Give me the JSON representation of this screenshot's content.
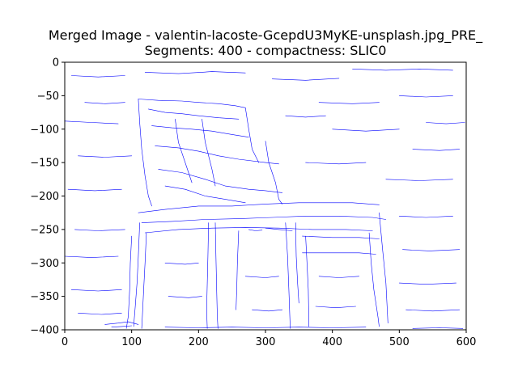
{
  "chart_data": {
    "type": "line",
    "title_line1": "Merged Image - valentin-lacoste-GcepdU3MyKE-unsplash.jpg_PRE_",
    "title_line2": "Segments: 400 - compactness: SLIC0",
    "xlim": [
      0,
      600
    ],
    "ylim": [
      -400,
      0
    ],
    "xticks": [
      0,
      100,
      200,
      300,
      400,
      500,
      600
    ],
    "yticks": [
      0,
      -50,
      -100,
      -150,
      -200,
      -250,
      -300,
      -350,
      -400
    ],
    "xtick_labels": [
      "0",
      "100",
      "200",
      "300",
      "400",
      "500",
      "600"
    ],
    "ytick_labels": [
      "0",
      "−50",
      "−100",
      "−150",
      "−200",
      "−250",
      "−300",
      "−350",
      "−400"
    ],
    "grid": false,
    "line_color": "#0000ff",
    "series": [
      {
        "values": [
          [
            110,
            -55
          ],
          [
            140,
            -57
          ],
          [
            175,
            -58
          ],
          [
            200,
            -60
          ],
          [
            230,
            -62
          ],
          [
            255,
            -65
          ],
          [
            270,
            -68
          ]
        ]
      },
      {
        "values": [
          [
            110,
            -55
          ],
          [
            112,
            -90
          ],
          [
            115,
            -130
          ],
          [
            120,
            -170
          ],
          [
            125,
            -200
          ],
          [
            130,
            -215
          ]
        ]
      },
      {
        "values": [
          [
            125,
            -70
          ],
          [
            150,
            -75
          ],
          [
            175,
            -77
          ],
          [
            200,
            -80
          ],
          [
            230,
            -83
          ],
          [
            260,
            -85
          ]
        ]
      },
      {
        "values": [
          [
            130,
            -95
          ],
          [
            160,
            -98
          ],
          [
            190,
            -100
          ],
          [
            220,
            -103
          ],
          [
            250,
            -108
          ],
          [
            275,
            -112
          ]
        ]
      },
      {
        "values": [
          [
            135,
            -125
          ],
          [
            170,
            -128
          ],
          [
            200,
            -133
          ],
          [
            230,
            -140
          ],
          [
            260,
            -145
          ],
          [
            300,
            -150
          ],
          [
            320,
            -152
          ]
        ]
      },
      {
        "values": [
          [
            140,
            -160
          ],
          [
            175,
            -165
          ],
          [
            210,
            -175
          ],
          [
            240,
            -185
          ],
          [
            275,
            -190
          ],
          [
            300,
            -192
          ],
          [
            325,
            -195
          ]
        ]
      },
      {
        "values": [
          [
            150,
            -185
          ],
          [
            180,
            -190
          ],
          [
            210,
            -200
          ],
          [
            240,
            -205
          ],
          [
            270,
            -210
          ]
        ]
      },
      {
        "values": [
          [
            270,
            -68
          ],
          [
            275,
            -100
          ],
          [
            280,
            -130
          ],
          [
            290,
            -150
          ]
        ]
      },
      {
        "values": [
          [
            300,
            -118
          ],
          [
            305,
            -150
          ],
          [
            315,
            -180
          ],
          [
            320,
            -205
          ],
          [
            325,
            -212
          ]
        ]
      },
      {
        "values": [
          [
            205,
            -85
          ],
          [
            210,
            -120
          ],
          [
            220,
            -160
          ],
          [
            225,
            -185
          ]
        ]
      },
      {
        "values": [
          [
            165,
            -85
          ],
          [
            170,
            -120
          ],
          [
            180,
            -150
          ],
          [
            190,
            -180
          ]
        ]
      },
      {
        "values": [
          [
            110,
            -225
          ],
          [
            150,
            -220
          ],
          [
            200,
            -215
          ],
          [
            250,
            -215
          ],
          [
            300,
            -212
          ],
          [
            350,
            -210
          ],
          [
            400,
            -210
          ],
          [
            430,
            -210
          ],
          [
            470,
            -213
          ]
        ]
      },
      {
        "values": [
          [
            115,
            -240
          ],
          [
            160,
            -238
          ],
          [
            210,
            -235
          ],
          [
            260,
            -234
          ],
          [
            310,
            -232
          ],
          [
            360,
            -230
          ],
          [
            410,
            -230
          ],
          [
            460,
            -232
          ],
          [
            480,
            -235
          ]
        ]
      },
      {
        "values": [
          [
            120,
            -255
          ],
          [
            170,
            -250
          ],
          [
            220,
            -248
          ],
          [
            270,
            -247
          ],
          [
            320,
            -248
          ],
          [
            370,
            -250
          ],
          [
            420,
            -250
          ],
          [
            460,
            -252
          ]
        ]
      },
      {
        "values": [
          [
            100,
            -260
          ],
          [
            98,
            -300
          ],
          [
            97,
            -340
          ],
          [
            95,
            -380
          ],
          [
            92,
            -398
          ]
        ]
      },
      {
        "values": [
          [
            112,
            -240
          ],
          [
            110,
            -290
          ],
          [
            108,
            -330
          ],
          [
            105,
            -370
          ],
          [
            103,
            -395
          ]
        ]
      },
      {
        "values": [
          [
            122,
            -255
          ],
          [
            120,
            -300
          ],
          [
            118,
            -340
          ],
          [
            116,
            -380
          ],
          [
            115,
            -398
          ]
        ]
      },
      {
        "values": [
          [
            215,
            -240
          ],
          [
            214,
            -290
          ],
          [
            213,
            -330
          ],
          [
            212,
            -370
          ],
          [
            213,
            -398
          ]
        ]
      },
      {
        "values": [
          [
            225,
            -240
          ],
          [
            226,
            -290
          ],
          [
            227,
            -340
          ],
          [
            228,
            -380
          ],
          [
            229,
            -398
          ]
        ]
      },
      {
        "values": [
          [
            260,
            -252
          ],
          [
            258,
            -300
          ],
          [
            257,
            -340
          ],
          [
            256,
            -370
          ]
        ]
      },
      {
        "values": [
          [
            330,
            -240
          ],
          [
            333,
            -290
          ],
          [
            335,
            -340
          ],
          [
            337,
            -398
          ]
        ]
      },
      {
        "values": [
          [
            345,
            -240
          ],
          [
            346,
            -290
          ],
          [
            348,
            -330
          ],
          [
            350,
            -360
          ]
        ]
      },
      {
        "values": [
          [
            355,
            -260
          ],
          [
            400,
            -262
          ],
          [
            440,
            -262
          ],
          [
            470,
            -264
          ]
        ]
      },
      {
        "values": [
          [
            355,
            -285
          ],
          [
            400,
            -285
          ],
          [
            440,
            -285
          ],
          [
            465,
            -287
          ]
        ]
      },
      {
        "values": [
          [
            360,
            -260
          ],
          [
            362,
            -300
          ],
          [
            364,
            -340
          ],
          [
            365,
            -395
          ]
        ]
      },
      {
        "values": [
          [
            455,
            -255
          ],
          [
            458,
            -300
          ],
          [
            462,
            -340
          ],
          [
            468,
            -380
          ],
          [
            470,
            -395
          ]
        ]
      },
      {
        "values": [
          [
            470,
            -225
          ],
          [
            475,
            -280
          ],
          [
            480,
            -330
          ],
          [
            483,
            -390
          ]
        ]
      },
      {
        "values": [
          [
            300,
            -248
          ],
          [
            320,
            -250
          ],
          [
            340,
            -252
          ]
        ]
      },
      {
        "values": [
          [
            275,
            -250
          ],
          [
            285,
            -252
          ],
          [
            295,
            -251
          ]
        ]
      },
      {
        "values": [
          [
            60,
            -392
          ],
          [
            80,
            -390
          ],
          [
            95,
            -388
          ],
          [
            110,
            -392
          ]
        ]
      },
      {
        "values": [
          [
            70,
            -396
          ],
          [
            85,
            -395
          ],
          [
            100,
            -394
          ]
        ]
      },
      {
        "values": [
          [
            0,
            -88
          ],
          [
            40,
            -90
          ],
          [
            80,
            -92
          ]
        ]
      },
      {
        "values": [
          [
            10,
            -20
          ],
          [
            50,
            -22
          ],
          [
            90,
            -20
          ]
        ]
      },
      {
        "values": [
          [
            120,
            -15
          ],
          [
            170,
            -17
          ],
          [
            220,
            -14
          ],
          [
            270,
            -16
          ]
        ]
      },
      {
        "values": [
          [
            310,
            -25
          ],
          [
            360,
            -27
          ],
          [
            410,
            -24
          ]
        ]
      },
      {
        "values": [
          [
            430,
            -10
          ],
          [
            480,
            -12
          ],
          [
            530,
            -10
          ],
          [
            580,
            -12
          ]
        ]
      },
      {
        "values": [
          [
            380,
            -60
          ],
          [
            430,
            -62
          ],
          [
            470,
            -60
          ]
        ]
      },
      {
        "values": [
          [
            500,
            -50
          ],
          [
            540,
            -52
          ],
          [
            580,
            -50
          ]
        ]
      },
      {
        "values": [
          [
            400,
            -100
          ],
          [
            450,
            -103
          ],
          [
            500,
            -100
          ]
        ]
      },
      {
        "values": [
          [
            520,
            -130
          ],
          [
            560,
            -132
          ],
          [
            590,
            -130
          ]
        ]
      },
      {
        "values": [
          [
            360,
            -150
          ],
          [
            410,
            -152
          ],
          [
            450,
            -150
          ]
        ]
      },
      {
        "values": [
          [
            480,
            -175
          ],
          [
            530,
            -177
          ],
          [
            580,
            -175
          ]
        ]
      },
      {
        "values": [
          [
            20,
            -140
          ],
          [
            60,
            -142
          ],
          [
            100,
            -140
          ]
        ]
      },
      {
        "values": [
          [
            5,
            -190
          ],
          [
            45,
            -192
          ],
          [
            85,
            -190
          ]
        ]
      },
      {
        "values": [
          [
            15,
            -250
          ],
          [
            50,
            -252
          ],
          [
            90,
            -250
          ]
        ]
      },
      {
        "values": [
          [
            0,
            -290
          ],
          [
            40,
            -292
          ],
          [
            80,
            -290
          ]
        ]
      },
      {
        "values": [
          [
            10,
            -340
          ],
          [
            50,
            -342
          ],
          [
            85,
            -340
          ]
        ]
      },
      {
        "values": [
          [
            20,
            -375
          ],
          [
            55,
            -377
          ],
          [
            85,
            -375
          ]
        ]
      },
      {
        "values": [
          [
            500,
            -230
          ],
          [
            540,
            -232
          ],
          [
            580,
            -230
          ]
        ]
      },
      {
        "values": [
          [
            505,
            -280
          ],
          [
            545,
            -282
          ],
          [
            590,
            -280
          ]
        ]
      },
      {
        "values": [
          [
            500,
            -330
          ],
          [
            540,
            -332
          ],
          [
            585,
            -330
          ]
        ]
      },
      {
        "values": [
          [
            510,
            -370
          ],
          [
            550,
            -372
          ],
          [
            590,
            -370
          ]
        ]
      },
      {
        "values": [
          [
            150,
            -300
          ],
          [
            180,
            -302
          ],
          [
            200,
            -300
          ]
        ]
      },
      {
        "values": [
          [
            155,
            -350
          ],
          [
            185,
            -352
          ],
          [
            205,
            -350
          ]
        ]
      },
      {
        "values": [
          [
            270,
            -320
          ],
          [
            300,
            -322
          ],
          [
            320,
            -320
          ]
        ]
      },
      {
        "values": [
          [
            280,
            -370
          ],
          [
            305,
            -372
          ],
          [
            325,
            -370
          ]
        ]
      },
      {
        "values": [
          [
            380,
            -320
          ],
          [
            410,
            -322
          ],
          [
            440,
            -320
          ]
        ]
      },
      {
        "values": [
          [
            375,
            -365
          ],
          [
            405,
            -367
          ],
          [
            435,
            -365
          ]
        ]
      },
      {
        "values": [
          [
            150,
            -396
          ],
          [
            200,
            -397
          ],
          [
            250,
            -396
          ],
          [
            300,
            -397
          ],
          [
            350,
            -396
          ],
          [
            400,
            -397
          ],
          [
            450,
            -396
          ]
        ]
      },
      {
        "values": [
          [
            520,
            -398
          ],
          [
            560,
            -397
          ],
          [
            595,
            -398
          ]
        ]
      },
      {
        "values": [
          [
            30,
            -60
          ],
          [
            60,
            -62
          ],
          [
            90,
            -60
          ]
        ]
      },
      {
        "values": [
          [
            330,
            -80
          ],
          [
            360,
            -82
          ],
          [
            390,
            -80
          ]
        ]
      },
      {
        "values": [
          [
            540,
            -90
          ],
          [
            570,
            -92
          ],
          [
            598,
            -90
          ]
        ]
      }
    ]
  }
}
